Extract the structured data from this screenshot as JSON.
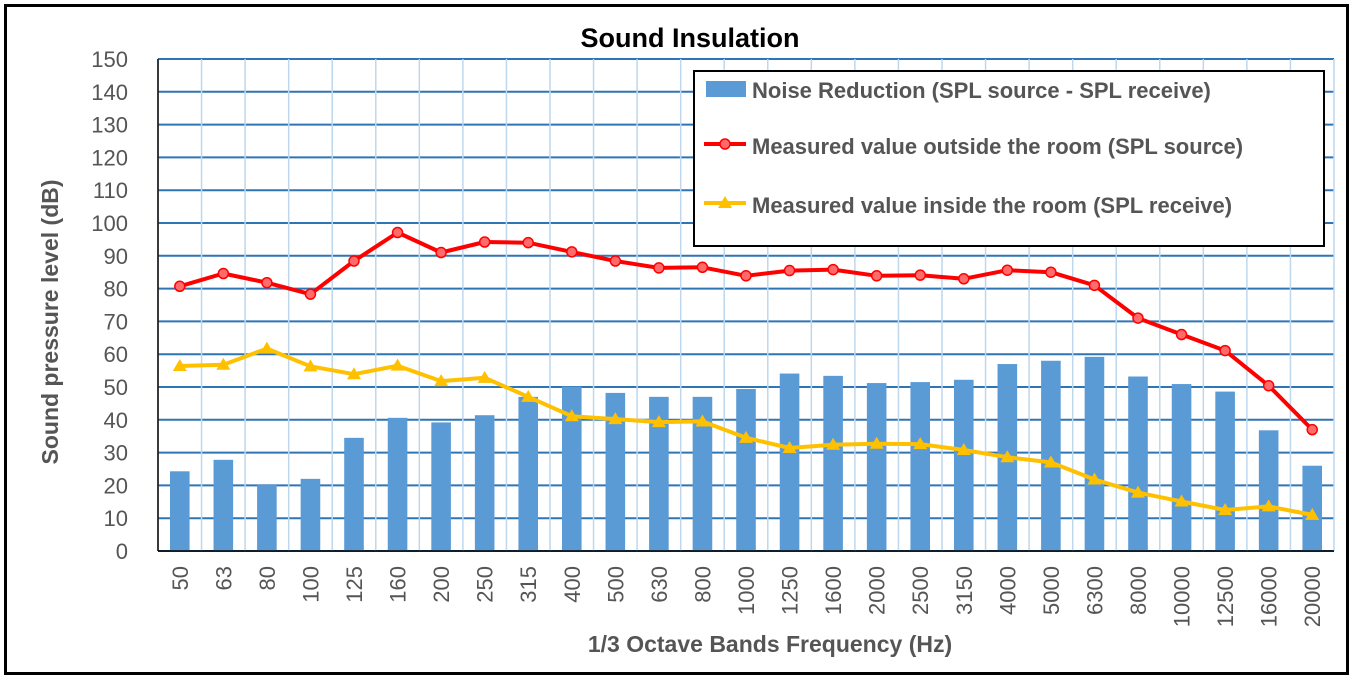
{
  "chart_data": {
    "type": "bar",
    "title": "Sound Insulation",
    "xlabel": "1/3 Octave Bands Frequency (Hz)",
    "ylabel": "Sound pressure level (dB)",
    "ylim": [
      0,
      150
    ],
    "yticks": [
      0,
      10,
      20,
      30,
      40,
      50,
      60,
      70,
      80,
      90,
      100,
      110,
      120,
      130,
      140,
      150
    ],
    "grid": true,
    "legend_position": "top-right",
    "categories": [
      "50",
      "63",
      "80",
      "100",
      "125",
      "160",
      "200",
      "250",
      "315",
      "400",
      "500",
      "630",
      "800",
      "1000",
      "1250",
      "1600",
      "2000",
      "2500",
      "3150",
      "4000",
      "5000",
      "6300",
      "8000",
      "10000",
      "12500",
      "16000",
      "20000"
    ],
    "series": [
      {
        "name": "Noise Reduction (SPL source - SPL receive)",
        "kind": "bar",
        "color": "#5b9bd5",
        "values": [
          24.3,
          27.8,
          20.1,
          22.0,
          34.5,
          40.6,
          39.2,
          41.4,
          47.0,
          50.1,
          48.2,
          47.0,
          47.0,
          49.4,
          54.1,
          53.4,
          51.2,
          51.5,
          52.2,
          57.0,
          58.0,
          59.2,
          53.2,
          50.9,
          48.6,
          36.8,
          26.0
        ]
      },
      {
        "name": "Measured value outside the room (SPL source)",
        "kind": "line",
        "marker": "circle",
        "color": "#ff0000",
        "values": [
          80.7,
          84.6,
          81.8,
          78.3,
          88.4,
          97.1,
          91.0,
          94.2,
          94.0,
          91.2,
          88.4,
          86.3,
          86.5,
          83.9,
          85.5,
          85.8,
          83.9,
          84.1,
          83.0,
          85.6,
          85.0,
          81.0,
          71.0,
          66.0,
          61.1,
          50.4,
          37.0
        ]
      },
      {
        "name": "Measured value inside the room (SPL receive)",
        "kind": "line",
        "marker": "triangle",
        "color": "#ffc000",
        "values": [
          56.4,
          56.8,
          61.7,
          56.3,
          53.9,
          56.5,
          51.8,
          52.8,
          47.0,
          41.1,
          40.2,
          39.3,
          39.5,
          34.5,
          31.4,
          32.4,
          32.7,
          32.6,
          30.8,
          28.6,
          27.0,
          21.8,
          17.8,
          15.1,
          12.5,
          13.6,
          11.0
        ]
      }
    ]
  }
}
